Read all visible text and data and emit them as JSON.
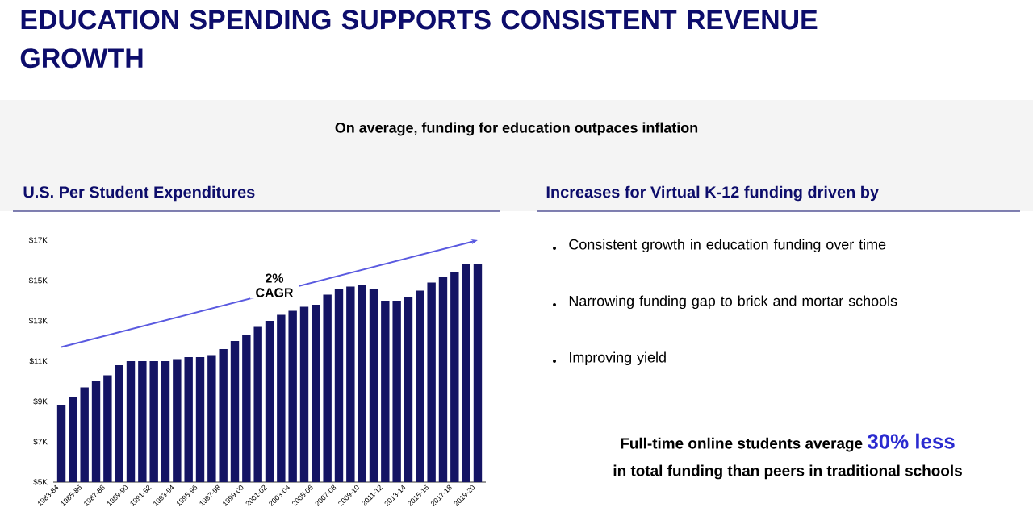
{
  "chart_data": [
    {
      "type": "other",
      "title": "EDUCATION SPENDING SUPPORTS CONSISTENT REVENUE GROWTH",
      "subtitle": "On average, funding for education outpaces inflation"
    },
    {
      "type": "bar",
      "title": "U.S. Per Student Expenditures",
      "categories": [
        "1983-84",
        null,
        "1985-86",
        null,
        "1987-88",
        null,
        "1989-90",
        null,
        "1991-92",
        null,
        "1993-94",
        null,
        "1995-96",
        null,
        "1997-98",
        null,
        "1999-00",
        null,
        "2001-02",
        null,
        "2003-04",
        null,
        "2005-06",
        null,
        "2007-08",
        null,
        "2009-10",
        null,
        "2011-12",
        null,
        "2013-14",
        null,
        "2015-16",
        null,
        "2017-18",
        null,
        "2019-20"
      ],
      "series": [
        {
          "type": "line",
          "color": "#5a5ae0",
          "values": [
            11.7,
            null,
            null,
            null,
            null,
            null,
            null,
            null,
            null,
            null,
            null,
            null,
            null,
            null,
            null,
            null,
            null,
            null,
            null,
            null,
            null,
            null,
            null,
            null,
            null,
            null,
            null,
            null,
            null,
            null,
            null,
            null,
            null,
            null,
            null,
            null,
            17
          ]
        },
        {
          "color": "#141464",
          "values": [
            8.8,
            9.2,
            9.7,
            10.0,
            10.3,
            10.8,
            11.0,
            11.0,
            11.0,
            11.0,
            11.1,
            11.2,
            11.2,
            11.3,
            11.6,
            12.0,
            12.3,
            12.7,
            13.0,
            13.3,
            13.5,
            13.7,
            13.8,
            14.3,
            14.6,
            14.7,
            14.8,
            14.6,
            14.0,
            14.0,
            14.2,
            14.5,
            14.9,
            15.2,
            15.4,
            15.8,
            15.8
          ]
        }
      ],
      "ylim": [
        5,
        17
      ],
      "yticks": [
        {
          "value": 5,
          "label": "$5K"
        },
        {
          "value": 7,
          "label": "$7K"
        },
        {
          "value": 9,
          "label": "$9K"
        },
        {
          "value": 11,
          "label": "$11K"
        },
        {
          "value": 13,
          "label": "$13K"
        },
        {
          "value": 15,
          "label": "$15K"
        },
        {
          "value": 17,
          "label": "$17K"
        }
      ],
      "annotations": [
        "2% CAGR"
      ]
    },
    {
      "type": "other",
      "title": "Increases for Virtual K-12 funding driven by",
      "annotations": [
        "Consistent growth in education funding over time",
        "Narrowing funding gap to brick and mortar schools",
        "Improving yield",
        "Full-time online students average",
        "30% less",
        "in total funding than peers in traditional schools"
      ]
    }
  ]
}
